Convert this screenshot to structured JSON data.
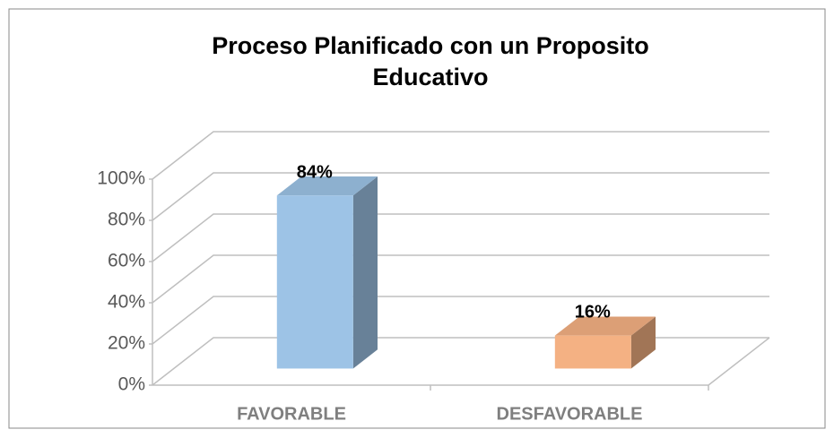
{
  "chart_data": {
    "type": "bar3d",
    "title_lines": [
      "Proceso Planificado con un Proposito",
      "Educativo"
    ],
    "categories": [
      "FAVORABLE",
      "DESFAVORABLE"
    ],
    "values": [
      84,
      16
    ],
    "value_labels": [
      "84%",
      "16%"
    ],
    "colors": [
      "#9dc3e6",
      "#f4b183"
    ],
    "ylim": [
      0,
      100
    ],
    "yticks": [
      {
        "value": 0,
        "label": "0%"
      },
      {
        "value": 20,
        "label": "20%"
      },
      {
        "value": 40,
        "label": "40%"
      },
      {
        "value": 60,
        "label": "60%"
      },
      {
        "value": 80,
        "label": "80%"
      },
      {
        "value": 100,
        "label": "100%"
      }
    ],
    "grid": true
  }
}
